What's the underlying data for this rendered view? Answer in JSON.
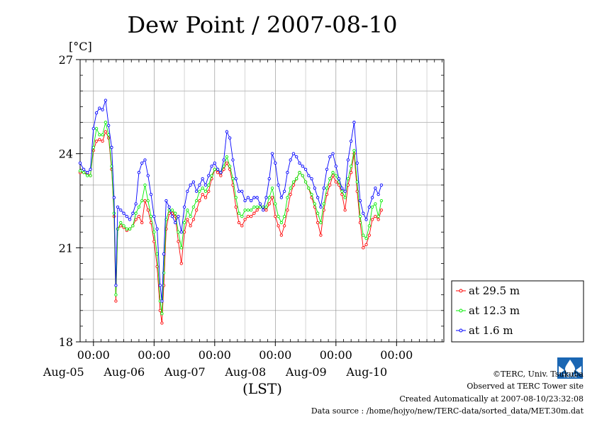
{
  "chart_data": {
    "type": "line",
    "title": "Dew Point / 2007-08-10",
    "ylabel": "[°C]",
    "xlabel": "(LST)",
    "ylim": [
      18,
      27
    ],
    "yticks": [
      18,
      21,
      24,
      27
    ],
    "x_unit": "days since Aug-04 00:00",
    "xlim": [
      0.78,
      6.78
    ],
    "x_major": [
      {
        "x": 1,
        "time": "00:00",
        "date": "Aug-05"
      },
      {
        "x": 2,
        "time": "00:00",
        "date": "Aug-06"
      },
      {
        "x": 3,
        "time": "00:00",
        "date": "Aug-07"
      },
      {
        "x": 4,
        "time": "00:00",
        "date": "Aug-08"
      },
      {
        "x": 5,
        "time": "00:00",
        "date": "Aug-09"
      },
      {
        "x": 6,
        "time": "00:00",
        "date": "Aug-10"
      }
    ],
    "grid": true,
    "legend_position": "lower-right outside",
    "series": [
      {
        "name": "at 29.5 m",
        "color": "#ff0000",
        "points": [
          [
            0.78,
            23.4
          ],
          [
            0.84,
            23.4
          ],
          [
            0.9,
            23.35
          ],
          [
            0.95,
            23.3
          ],
          [
            1.0,
            24.1
          ],
          [
            1.05,
            24.4
          ],
          [
            1.1,
            24.45
          ],
          [
            1.15,
            24.4
          ],
          [
            1.2,
            24.7
          ],
          [
            1.25,
            24.5
          ],
          [
            1.3,
            23.5
          ],
          [
            1.34,
            22.0
          ],
          [
            1.37,
            19.3
          ],
          [
            1.4,
            21.6
          ],
          [
            1.45,
            21.7
          ],
          [
            1.5,
            21.65
          ],
          [
            1.55,
            21.55
          ],
          [
            1.6,
            21.6
          ],
          [
            1.65,
            21.7
          ],
          [
            1.7,
            21.9
          ],
          [
            1.75,
            22.0
          ],
          [
            1.8,
            21.8
          ],
          [
            1.85,
            22.5
          ],
          [
            1.9,
            22.2
          ],
          [
            1.95,
            21.8
          ],
          [
            2.0,
            21.2
          ],
          [
            2.05,
            20.4
          ],
          [
            2.1,
            19.0
          ],
          [
            2.13,
            18.6
          ],
          [
            2.16,
            19.8
          ],
          [
            2.2,
            21.6
          ],
          [
            2.25,
            22.1
          ],
          [
            2.3,
            22.1
          ],
          [
            2.35,
            22.0
          ],
          [
            2.4,
            21.2
          ],
          [
            2.45,
            20.5
          ],
          [
            2.5,
            21.5
          ],
          [
            2.55,
            21.9
          ],
          [
            2.6,
            21.7
          ],
          [
            2.65,
            21.9
          ],
          [
            2.7,
            22.2
          ],
          [
            2.75,
            22.5
          ],
          [
            2.8,
            22.7
          ],
          [
            2.85,
            22.6
          ],
          [
            2.9,
            22.8
          ],
          [
            2.95,
            23.2
          ],
          [
            3.0,
            23.5
          ],
          [
            3.05,
            23.4
          ],
          [
            3.1,
            23.3
          ],
          [
            3.15,
            23.5
          ],
          [
            3.2,
            23.7
          ],
          [
            3.25,
            23.5
          ],
          [
            3.3,
            23.0
          ],
          [
            3.35,
            22.3
          ],
          [
            3.4,
            21.8
          ],
          [
            3.45,
            21.7
          ],
          [
            3.5,
            21.9
          ],
          [
            3.55,
            22.0
          ],
          [
            3.6,
            22.0
          ],
          [
            3.65,
            22.1
          ],
          [
            3.7,
            22.2
          ],
          [
            3.75,
            22.3
          ],
          [
            3.8,
            22.3
          ],
          [
            3.85,
            22.2
          ],
          [
            3.9,
            22.4
          ],
          [
            3.95,
            22.6
          ],
          [
            4.0,
            22.0
          ],
          [
            4.05,
            21.7
          ],
          [
            4.1,
            21.4
          ],
          [
            4.15,
            21.7
          ],
          [
            4.2,
            22.2
          ],
          [
            4.25,
            22.7
          ],
          [
            4.3,
            23.0
          ],
          [
            4.35,
            23.2
          ],
          [
            4.4,
            23.4
          ],
          [
            4.45,
            23.3
          ],
          [
            4.5,
            23.1
          ],
          [
            4.55,
            22.9
          ],
          [
            4.6,
            22.6
          ],
          [
            4.65,
            22.3
          ],
          [
            4.7,
            21.8
          ],
          [
            4.75,
            21.4
          ],
          [
            4.8,
            22.2
          ],
          [
            4.85,
            22.7
          ],
          [
            4.9,
            23.0
          ],
          [
            4.95,
            23.3
          ],
          [
            5.0,
            23.1
          ],
          [
            5.05,
            23.0
          ],
          [
            5.1,
            22.7
          ],
          [
            5.15,
            22.2
          ],
          [
            5.2,
            23.0
          ],
          [
            5.25,
            23.4
          ],
          [
            5.3,
            24.0
          ],
          [
            5.35,
            22.8
          ],
          [
            5.4,
            21.8
          ],
          [
            5.45,
            21.0
          ],
          [
            5.5,
            21.1
          ],
          [
            5.55,
            21.4
          ],
          [
            5.6,
            21.9
          ],
          [
            5.65,
            22.0
          ],
          [
            5.7,
            21.9
          ],
          [
            5.75,
            22.2
          ]
        ]
      },
      {
        "name": "at 12.3 m",
        "color": "#00ee00",
        "points": [
          [
            0.78,
            23.45
          ],
          [
            0.84,
            23.4
          ],
          [
            0.9,
            23.3
          ],
          [
            0.95,
            23.3
          ],
          [
            1.0,
            24.2
          ],
          [
            1.05,
            24.8
          ],
          [
            1.1,
            24.6
          ],
          [
            1.15,
            24.6
          ],
          [
            1.2,
            25.0
          ],
          [
            1.25,
            24.6
          ],
          [
            1.3,
            23.6
          ],
          [
            1.34,
            22.1
          ],
          [
            1.37,
            19.5
          ],
          [
            1.4,
            21.6
          ],
          [
            1.45,
            21.8
          ],
          [
            1.5,
            21.7
          ],
          [
            1.55,
            21.6
          ],
          [
            1.6,
            21.6
          ],
          [
            1.65,
            21.7
          ],
          [
            1.7,
            22.1
          ],
          [
            1.75,
            22.3
          ],
          [
            1.8,
            22.5
          ],
          [
            1.85,
            23.0
          ],
          [
            1.9,
            22.5
          ],
          [
            1.95,
            22.0
          ],
          [
            2.0,
            21.5
          ],
          [
            2.05,
            20.8
          ],
          [
            2.1,
            19.3
          ],
          [
            2.13,
            18.9
          ],
          [
            2.16,
            20.2
          ],
          [
            2.2,
            21.9
          ],
          [
            2.25,
            22.2
          ],
          [
            2.3,
            22.2
          ],
          [
            2.35,
            22.1
          ],
          [
            2.4,
            21.5
          ],
          [
            2.45,
            21.0
          ],
          [
            2.5,
            21.8
          ],
          [
            2.55,
            22.2
          ],
          [
            2.6,
            22.0
          ],
          [
            2.65,
            22.3
          ],
          [
            2.7,
            22.5
          ],
          [
            2.75,
            22.8
          ],
          [
            2.8,
            22.9
          ],
          [
            2.85,
            22.8
          ],
          [
            2.9,
            23.0
          ],
          [
            2.95,
            23.3
          ],
          [
            3.0,
            23.5
          ],
          [
            3.05,
            23.5
          ],
          [
            3.1,
            23.4
          ],
          [
            3.15,
            23.6
          ],
          [
            3.2,
            23.9
          ],
          [
            3.25,
            23.6
          ],
          [
            3.3,
            23.2
          ],
          [
            3.35,
            22.6
          ],
          [
            3.4,
            22.1
          ],
          [
            3.45,
            22.0
          ],
          [
            3.5,
            22.2
          ],
          [
            3.55,
            22.2
          ],
          [
            3.6,
            22.2
          ],
          [
            3.65,
            22.3
          ],
          [
            3.7,
            22.3
          ],
          [
            3.75,
            22.3
          ],
          [
            3.8,
            22.3
          ],
          [
            3.85,
            22.3
          ],
          [
            3.9,
            22.6
          ],
          [
            3.95,
            22.9
          ],
          [
            4.0,
            22.4
          ],
          [
            4.05,
            22.0
          ],
          [
            4.1,
            21.8
          ],
          [
            4.15,
            22.0
          ],
          [
            4.2,
            22.6
          ],
          [
            4.25,
            22.9
          ],
          [
            4.3,
            23.1
          ],
          [
            4.35,
            23.2
          ],
          [
            4.4,
            23.4
          ],
          [
            4.45,
            23.3
          ],
          [
            4.5,
            23.1
          ],
          [
            4.55,
            22.9
          ],
          [
            4.6,
            22.7
          ],
          [
            4.65,
            22.4
          ],
          [
            4.7,
            22.1
          ],
          [
            4.75,
            21.8
          ],
          [
            4.8,
            22.4
          ],
          [
            4.85,
            22.9
          ],
          [
            4.9,
            23.2
          ],
          [
            4.95,
            23.4
          ],
          [
            5.0,
            23.3
          ],
          [
            5.05,
            23.1
          ],
          [
            5.1,
            22.8
          ],
          [
            5.15,
            22.6
          ],
          [
            5.2,
            23.2
          ],
          [
            5.25,
            23.6
          ],
          [
            5.3,
            24.1
          ],
          [
            5.35,
            23.1
          ],
          [
            5.4,
            22.0
          ],
          [
            5.45,
            21.4
          ],
          [
            5.5,
            21.3
          ],
          [
            5.55,
            21.7
          ],
          [
            5.6,
            22.3
          ],
          [
            5.65,
            22.4
          ],
          [
            5.7,
            22.0
          ],
          [
            5.75,
            22.5
          ]
        ]
      },
      {
        "name": "at 1.6 m",
        "color": "#0000ff",
        "points": [
          [
            0.78,
            23.7
          ],
          [
            0.84,
            23.5
          ],
          [
            0.9,
            23.4
          ],
          [
            0.95,
            23.5
          ],
          [
            1.0,
            24.8
          ],
          [
            1.05,
            25.3
          ],
          [
            1.1,
            25.45
          ],
          [
            1.15,
            25.4
          ],
          [
            1.2,
            25.7
          ],
          [
            1.25,
            24.9
          ],
          [
            1.3,
            24.2
          ],
          [
            1.34,
            22.6
          ],
          [
            1.37,
            19.8
          ],
          [
            1.4,
            22.3
          ],
          [
            1.45,
            22.2
          ],
          [
            1.5,
            22.1
          ],
          [
            1.55,
            22.0
          ],
          [
            1.6,
            21.9
          ],
          [
            1.65,
            22.1
          ],
          [
            1.7,
            22.4
          ],
          [
            1.75,
            23.4
          ],
          [
            1.8,
            23.7
          ],
          [
            1.85,
            23.8
          ],
          [
            1.9,
            23.3
          ],
          [
            1.95,
            22.7
          ],
          [
            2.0,
            22.0
          ],
          [
            2.05,
            21.6
          ],
          [
            2.1,
            19.8
          ],
          [
            2.13,
            19.3
          ],
          [
            2.16,
            20.8
          ],
          [
            2.2,
            22.5
          ],
          [
            2.25,
            22.3
          ],
          [
            2.3,
            22.0
          ],
          [
            2.35,
            21.8
          ],
          [
            2.4,
            22.0
          ],
          [
            2.45,
            21.5
          ],
          [
            2.5,
            22.3
          ],
          [
            2.55,
            22.8
          ],
          [
            2.6,
            23.0
          ],
          [
            2.65,
            23.1
          ],
          [
            2.7,
            22.8
          ],
          [
            2.75,
            23.0
          ],
          [
            2.8,
            23.2
          ],
          [
            2.85,
            23.0
          ],
          [
            2.9,
            23.3
          ],
          [
            2.95,
            23.6
          ],
          [
            3.0,
            23.7
          ],
          [
            3.05,
            23.5
          ],
          [
            3.1,
            23.4
          ],
          [
            3.15,
            23.8
          ],
          [
            3.2,
            24.7
          ],
          [
            3.25,
            24.5
          ],
          [
            3.3,
            23.8
          ],
          [
            3.35,
            23.2
          ],
          [
            3.4,
            22.8
          ],
          [
            3.45,
            22.8
          ],
          [
            3.5,
            22.5
          ],
          [
            3.55,
            22.6
          ],
          [
            3.6,
            22.5
          ],
          [
            3.65,
            22.6
          ],
          [
            3.7,
            22.6
          ],
          [
            3.75,
            22.4
          ],
          [
            3.8,
            22.2
          ],
          [
            3.85,
            22.6
          ],
          [
            3.9,
            23.2
          ],
          [
            3.95,
            24.0
          ],
          [
            4.0,
            23.7
          ],
          [
            4.05,
            23.0
          ],
          [
            4.1,
            22.6
          ],
          [
            4.15,
            22.8
          ],
          [
            4.2,
            23.4
          ],
          [
            4.25,
            23.8
          ],
          [
            4.3,
            24.0
          ],
          [
            4.35,
            23.9
          ],
          [
            4.4,
            23.7
          ],
          [
            4.45,
            23.6
          ],
          [
            4.5,
            23.5
          ],
          [
            4.55,
            23.3
          ],
          [
            4.6,
            23.2
          ],
          [
            4.65,
            22.9
          ],
          [
            4.7,
            22.6
          ],
          [
            4.75,
            22.3
          ],
          [
            4.8,
            22.9
          ],
          [
            4.85,
            23.5
          ],
          [
            4.9,
            23.9
          ],
          [
            4.95,
            24.0
          ],
          [
            5.0,
            23.6
          ],
          [
            5.05,
            23.2
          ],
          [
            5.1,
            22.9
          ],
          [
            5.15,
            22.8
          ],
          [
            5.2,
            23.8
          ],
          [
            5.25,
            24.4
          ],
          [
            5.3,
            25.0
          ],
          [
            5.35,
            23.7
          ],
          [
            5.4,
            22.5
          ],
          [
            5.45,
            22.1
          ],
          [
            5.5,
            21.9
          ],
          [
            5.55,
            22.3
          ],
          [
            5.6,
            22.6
          ],
          [
            5.65,
            22.9
          ],
          [
            5.7,
            22.7
          ],
          [
            5.75,
            23.0
          ]
        ]
      }
    ]
  },
  "legend": {
    "items": [
      {
        "label": "at 29.5 m",
        "color": "#ff0000"
      },
      {
        "label": "at 12.3 m",
        "color": "#00ee00"
      },
      {
        "label": "at 1.6 m",
        "color": "#0000ff"
      }
    ]
  },
  "footer": {
    "copyright": "©TERC, Univ. Tsukuba",
    "observed": "Observed at TERC Tower site",
    "created": "Created Automatically at 2007-08-10/23:32:08",
    "source": "Data source : /home/hojyo/new/TERC-data/sorted_data/MET.30m.dat",
    "logo_text": "TERC"
  }
}
